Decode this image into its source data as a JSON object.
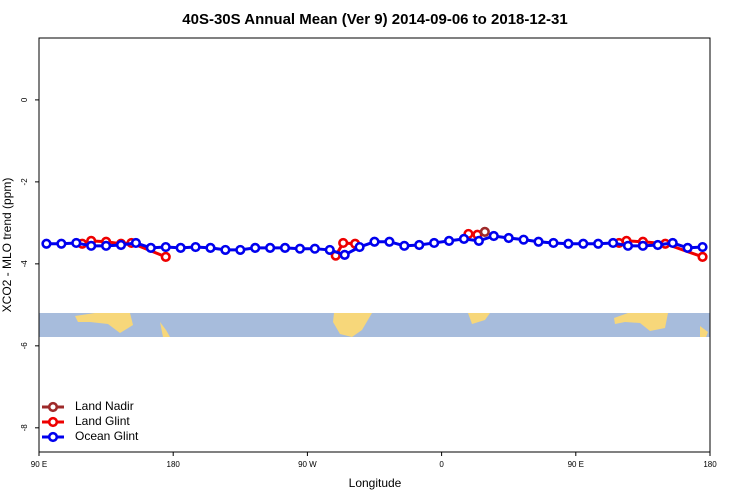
{
  "chart_data": {
    "type": "line",
    "title": "40S-30S Annual Mean (Ver 9)   2014-09-06 to 2018-12-31",
    "x_label": "Longitude",
    "y_label": "XCO2 - MLO trend (ppm)",
    "xlim": [
      90,
      540
    ],
    "ylim": [
      -8.59,
      1.51
    ],
    "xticks": [
      {
        "value": 90,
        "label": "90 E"
      },
      180,
      {
        "value": 270,
        "label": "90 W"
      },
      {
        "value": 360,
        "label": "0"
      },
      {
        "value": 450,
        "label": "90 E"
      },
      {
        "value": 540,
        "label": "180"
      }
    ],
    "yticks": [
      0,
      -2,
      -4,
      -6,
      -8
    ],
    "legend_position": "bottom-left",
    "series": [
      {
        "name": "Land Nadir",
        "color": "#9e2a2a",
        "x": [
          389
        ],
        "values": [
          -3.22
        ]
      },
      {
        "name": "Land Glint",
        "color": "#ee0000",
        "x": [
          119,
          125,
          135,
          145,
          152,
          175,
          null,
          289,
          294,
          302,
          null,
          378,
          384,
          null,
          479,
          484,
          495,
          510,
          535
        ],
        "values": [
          -3.51,
          -3.44,
          -3.46,
          -3.51,
          -3.49,
          -3.83,
          null,
          -3.8,
          -3.49,
          -3.51,
          null,
          -3.27,
          -3.29,
          null,
          -3.49,
          -3.44,
          -3.46,
          -3.51,
          -3.83
        ]
      },
      {
        "name": "Ocean Glint",
        "color": "#0000ee",
        "x": [
          95,
          105,
          115,
          125,
          135,
          145,
          155,
          165,
          175,
          185,
          195,
          205,
          215,
          225,
          235,
          245,
          255,
          265,
          275,
          285,
          295,
          305,
          315,
          325,
          335,
          345,
          355,
          365,
          375,
          385,
          395,
          405,
          415,
          425,
          435,
          445,
          455,
          465,
          475,
          485,
          495,
          505,
          515,
          525,
          535
        ],
        "values": [
          -3.51,
          -3.51,
          -3.49,
          -3.56,
          -3.56,
          -3.54,
          -3.49,
          -3.61,
          -3.59,
          -3.61,
          -3.59,
          -3.61,
          -3.66,
          -3.66,
          -3.61,
          -3.61,
          -3.61,
          -3.63,
          -3.63,
          -3.66,
          -3.78,
          -3.59,
          -3.46,
          -3.46,
          -3.56,
          -3.54,
          -3.49,
          -3.44,
          -3.39,
          -3.44,
          -3.32,
          -3.37,
          -3.41,
          -3.46,
          -3.49,
          -3.51,
          -3.51,
          -3.51,
          -3.49,
          -3.56,
          -3.56,
          -3.54,
          -3.49,
          -3.61,
          -3.59
        ]
      }
    ]
  }
}
